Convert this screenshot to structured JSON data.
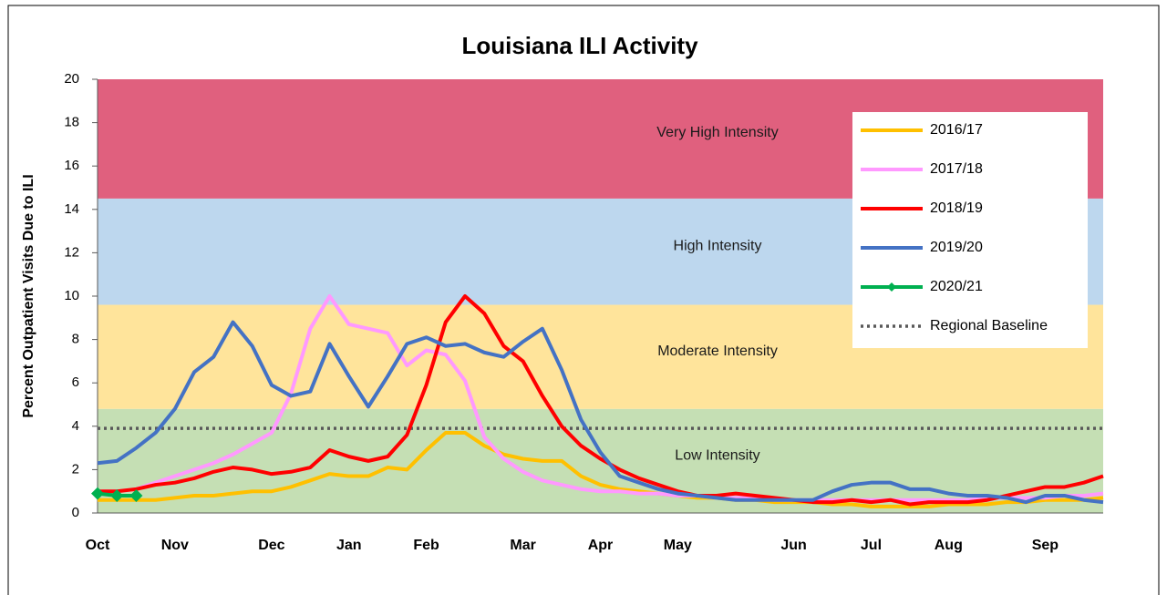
{
  "chart_data": {
    "type": "line",
    "title": "Louisiana ILI Activity",
    "y_label": "Percent Outpatient Visits Due to ILI",
    "categories": [
      "Oct",
      null,
      null,
      null,
      "Nov",
      null,
      null,
      null,
      null,
      "Dec",
      null,
      null,
      null,
      "Jan",
      null,
      null,
      null,
      "Feb",
      null,
      null,
      null,
      null,
      "Mar",
      null,
      null,
      null,
      "Apr",
      null,
      null,
      null,
      "May",
      null,
      null,
      null,
      null,
      null,
      "Jun",
      null,
      null,
      null,
      "Jul",
      null,
      null,
      null,
      "Aug",
      null,
      null,
      null,
      null,
      "Sep",
      null,
      null,
      null
    ],
    "ylim": [
      0,
      20
    ],
    "yticks": [
      0,
      2,
      4,
      6,
      8,
      10,
      12,
      14,
      16,
      18,
      20
    ],
    "bands": [
      {
        "label": "Low Intensity",
        "from": 0,
        "to": 4.8,
        "color": "#c5dfb4"
      },
      {
        "label": "Moderate Intensity",
        "from": 4.8,
        "to": 9.6,
        "color": "#ffe49b"
      },
      {
        "label": "High Intensity",
        "from": 9.6,
        "to": 14.5,
        "color": "#bdd7ee"
      },
      {
        "label": "Very High Intensity",
        "from": 14.5,
        "to": 20,
        "color": "#e0607e"
      }
    ],
    "series": [
      {
        "name": "2016/17",
        "color": "#ffc000",
        "values": [
          0.6,
          0.6,
          0.6,
          0.6,
          0.7,
          0.8,
          0.8,
          0.9,
          1.0,
          1.0,
          1.2,
          1.5,
          1.8,
          1.7,
          1.7,
          2.1,
          2.0,
          2.9,
          3.7,
          3.7,
          3.1,
          2.7,
          2.5,
          2.4,
          2.4,
          1.7,
          1.3,
          1.1,
          1.0,
          0.9,
          0.8,
          0.7,
          0.7,
          0.6,
          0.6,
          0.5,
          0.5,
          0.5,
          0.4,
          0.4,
          0.3,
          0.3,
          0.3,
          0.3,
          0.4,
          0.4,
          0.4,
          0.5,
          0.5,
          0.6,
          0.6,
          0.6,
          0.7
        ]
      },
      {
        "name": "2017/18",
        "color": "#ff99ff",
        "values": [
          1.0,
          1.0,
          1.1,
          1.4,
          1.7,
          2.0,
          2.3,
          2.7,
          3.2,
          3.7,
          5.5,
          8.5,
          10.0,
          8.7,
          8.5,
          8.3,
          6.8,
          7.5,
          7.3,
          6.1,
          3.5,
          2.5,
          1.9,
          1.5,
          1.3,
          1.1,
          1.0,
          1.0,
          0.9,
          0.9,
          0.8,
          0.8,
          0.7,
          0.7,
          0.7,
          0.6,
          0.6,
          0.6,
          0.6,
          0.6,
          0.6,
          0.6,
          0.6,
          0.6,
          0.6,
          0.6,
          0.7,
          0.7,
          0.7,
          0.7,
          0.8,
          0.8,
          0.9
        ]
      },
      {
        "name": "2018/19",
        "color": "#ff0000",
        "values": [
          1.0,
          1.0,
          1.1,
          1.3,
          1.4,
          1.6,
          1.9,
          2.1,
          2.0,
          1.8,
          1.9,
          2.1,
          2.9,
          2.6,
          2.4,
          2.6,
          3.6,
          5.9,
          8.8,
          10.0,
          9.2,
          7.7,
          7.0,
          5.4,
          4.0,
          3.1,
          2.5,
          2.0,
          1.6,
          1.3,
          1.0,
          0.8,
          0.8,
          0.9,
          0.8,
          0.7,
          0.6,
          0.5,
          0.5,
          0.6,
          0.5,
          0.6,
          0.4,
          0.5,
          0.5,
          0.5,
          0.6,
          0.8,
          1.0,
          1.2,
          1.2,
          1.4,
          1.7
        ]
      },
      {
        "name": "2019/20",
        "color": "#4472c4",
        "values": [
          2.3,
          2.4,
          3.0,
          3.7,
          4.8,
          6.5,
          7.2,
          8.8,
          7.7,
          5.9,
          5.4,
          5.6,
          7.8,
          6.3,
          4.9,
          6.3,
          7.8,
          8.1,
          7.7,
          7.8,
          7.4,
          7.2,
          7.9,
          8.5,
          6.6,
          4.3,
          2.8,
          1.7,
          1.4,
          1.1,
          0.9,
          0.8,
          0.7,
          0.6,
          0.6,
          0.6,
          0.6,
          0.6,
          1.0,
          1.3,
          1.4,
          1.4,
          1.1,
          1.1,
          0.9,
          0.8,
          0.8,
          0.7,
          0.5,
          0.8,
          0.8,
          0.6,
          0.5
        ]
      },
      {
        "name": "2020/21",
        "color": "#00b050",
        "marker": "diamond",
        "values": [
          0.9,
          0.8,
          0.8,
          null,
          null,
          null,
          null,
          null,
          null,
          null,
          null,
          null,
          null,
          null,
          null,
          null,
          null,
          null,
          null,
          null,
          null,
          null,
          null,
          null,
          null,
          null,
          null,
          null,
          null,
          null,
          null,
          null,
          null,
          null,
          null,
          null,
          null,
          null,
          null,
          null,
          null,
          null,
          null,
          null,
          null,
          null,
          null,
          null,
          null,
          null,
          null,
          null,
          null
        ]
      }
    ],
    "baseline": {
      "name": "Regional Baseline",
      "value": 3.9,
      "color": "#595959"
    }
  }
}
